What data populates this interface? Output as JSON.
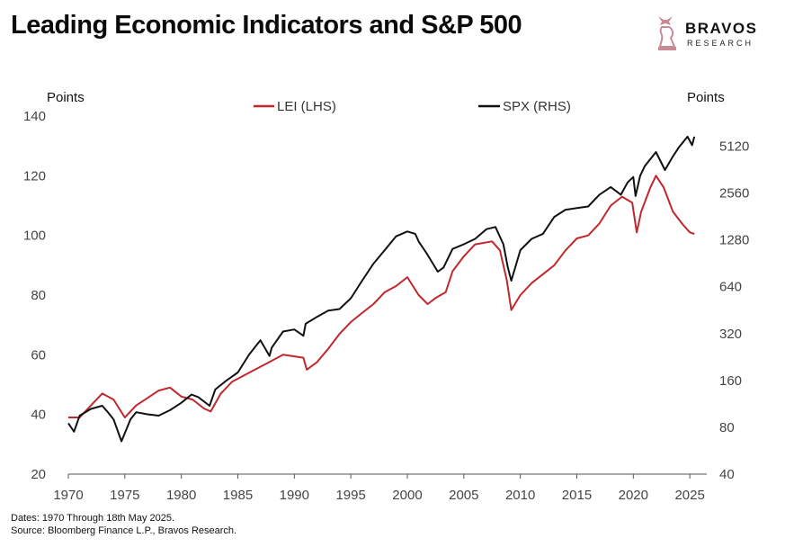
{
  "header": {
    "title": "Leading Economic Indicators and S&P 500"
  },
  "brand": {
    "name": "BRAVOS",
    "sub": "RESEARCH"
  },
  "footer": {
    "dates": "Dates: 1970 Through 18th May 2025.",
    "source": "Source: Bloomberg Finance L.P., Bravos Research."
  },
  "chart_data": {
    "type": "line",
    "title": "Leading Economic Indicators and S&P 500",
    "xlim": [
      1970,
      2026.5
    ],
    "x_ticks": [
      "1970",
      "1975",
      "1980",
      "1985",
      "1990",
      "1995",
      "2000",
      "2005",
      "2010",
      "2015",
      "2020",
      "2025"
    ],
    "left_axis": {
      "label": "Points",
      "lim": [
        20,
        140
      ],
      "ticks": [
        "20",
        "40",
        "60",
        "80",
        "100",
        "120",
        "140"
      ]
    },
    "right_axis": {
      "label": "Points",
      "scale": "log2",
      "lim": [
        40,
        8000
      ],
      "ticks": [
        "40",
        "80",
        "160",
        "320",
        "640",
        "1280",
        "2560",
        "5120"
      ]
    },
    "grid": false,
    "legend_position": "top",
    "series": [
      {
        "name": "LEI (LHS)",
        "axis": "left",
        "color": "#c0282d",
        "points": [
          [
            1970,
            39
          ],
          [
            1971,
            39
          ],
          [
            1972,
            43
          ],
          [
            1973,
            47
          ],
          [
            1974,
            45
          ],
          [
            1975,
            39
          ],
          [
            1976,
            43
          ],
          [
            1977,
            45.5
          ],
          [
            1978,
            48
          ],
          [
            1979,
            49
          ],
          [
            1980,
            46
          ],
          [
            1981,
            45
          ],
          [
            1982,
            42
          ],
          [
            1982.6,
            41
          ],
          [
            1983.5,
            47
          ],
          [
            1984.5,
            51
          ],
          [
            1986,
            54
          ],
          [
            1988,
            58
          ],
          [
            1989,
            60
          ],
          [
            1990.8,
            59
          ],
          [
            1991.1,
            55
          ],
          [
            1992,
            57.5
          ],
          [
            1993,
            62
          ],
          [
            1994,
            67
          ],
          [
            1995,
            71
          ],
          [
            1996,
            74
          ],
          [
            1997,
            77
          ],
          [
            1998,
            81
          ],
          [
            1999,
            83
          ],
          [
            2000,
            86
          ],
          [
            2001,
            80
          ],
          [
            2001.8,
            77
          ],
          [
            2002.5,
            79
          ],
          [
            2003.4,
            81
          ],
          [
            2004,
            88
          ],
          [
            2005,
            93
          ],
          [
            2006,
            97
          ],
          [
            2007.5,
            98
          ],
          [
            2008.2,
            95
          ],
          [
            2008.8,
            85
          ],
          [
            2009.2,
            75
          ],
          [
            2010,
            80
          ],
          [
            2011,
            84
          ],
          [
            2012,
            87
          ],
          [
            2013,
            90
          ],
          [
            2014,
            95
          ],
          [
            2015,
            99
          ],
          [
            2016,
            100
          ],
          [
            2017,
            104
          ],
          [
            2018,
            110
          ],
          [
            2019,
            113
          ],
          [
            2019.9,
            111
          ],
          [
            2020.3,
            101
          ],
          [
            2020.7,
            108
          ],
          [
            2021.5,
            116
          ],
          [
            2022,
            120
          ],
          [
            2022.7,
            116
          ],
          [
            2023.5,
            108
          ],
          [
            2024.3,
            104
          ],
          [
            2025,
            101
          ],
          [
            2025.4,
            100.5
          ]
        ]
      },
      {
        "name": "SPX (RHS)",
        "axis": "right",
        "color": "#111111",
        "points": [
          [
            1970,
            85
          ],
          [
            1970.5,
            75
          ],
          [
            1971,
            95
          ],
          [
            1972,
            105
          ],
          [
            1973,
            110
          ],
          [
            1973.5,
            100
          ],
          [
            1974,
            90
          ],
          [
            1974.7,
            65
          ],
          [
            1975.5,
            90
          ],
          [
            1976,
            100
          ],
          [
            1977,
            97
          ],
          [
            1978,
            95
          ],
          [
            1979,
            103
          ],
          [
            1980,
            115
          ],
          [
            1980.9,
            130
          ],
          [
            1981.5,
            125
          ],
          [
            1982.5,
            110
          ],
          [
            1983,
            140
          ],
          [
            1984,
            160
          ],
          [
            1985,
            180
          ],
          [
            1986,
            235
          ],
          [
            1987,
            290
          ],
          [
            1987.8,
            230
          ],
          [
            1988,
            260
          ],
          [
            1989,
            330
          ],
          [
            1990,
            340
          ],
          [
            1990.8,
            310
          ],
          [
            1991,
            370
          ],
          [
            1992,
            410
          ],
          [
            1993,
            450
          ],
          [
            1994,
            460
          ],
          [
            1995,
            540
          ],
          [
            1996,
            700
          ],
          [
            1997,
            900
          ],
          [
            1998,
            1100
          ],
          [
            1999,
            1350
          ],
          [
            2000,
            1450
          ],
          [
            2000.7,
            1400
          ],
          [
            2001,
            1250
          ],
          [
            2001.7,
            1050
          ],
          [
            2002.7,
            800
          ],
          [
            2003.2,
            850
          ],
          [
            2004,
            1120
          ],
          [
            2005,
            1200
          ],
          [
            2006,
            1300
          ],
          [
            2007,
            1500
          ],
          [
            2007.8,
            1550
          ],
          [
            2008.5,
            1200
          ],
          [
            2008.9,
            850
          ],
          [
            2009.2,
            700
          ],
          [
            2010,
            1100
          ],
          [
            2011,
            1300
          ],
          [
            2012,
            1400
          ],
          [
            2013,
            1800
          ],
          [
            2014,
            2000
          ],
          [
            2015,
            2050
          ],
          [
            2016,
            2100
          ],
          [
            2017,
            2500
          ],
          [
            2018,
            2800
          ],
          [
            2018.9,
            2500
          ],
          [
            2019.5,
            3000
          ],
          [
            2020,
            3250
          ],
          [
            2020.2,
            2450
          ],
          [
            2020.6,
            3300
          ],
          [
            2021,
            3800
          ],
          [
            2022,
            4700
          ],
          [
            2022.8,
            3600
          ],
          [
            2023.5,
            4400
          ],
          [
            2024,
            5000
          ],
          [
            2024.8,
            5900
          ],
          [
            2025.2,
            5200
          ],
          [
            2025.4,
            5900
          ]
        ]
      }
    ]
  }
}
